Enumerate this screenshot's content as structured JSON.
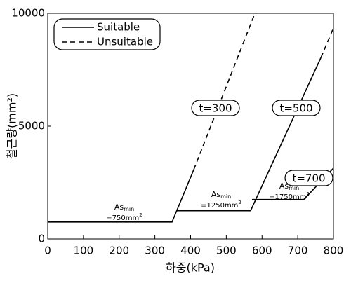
{
  "chart_data": {
    "type": "line",
    "xlabel": "하중(kPa)",
    "ylabel": "철근량(mm²)",
    "xlim": [
      0,
      800
    ],
    "ylim": [
      0,
      10000
    ],
    "xticks": [
      0,
      100,
      200,
      300,
      400,
      500,
      600,
      700,
      800
    ],
    "yticks": [
      0,
      5000,
      10000
    ],
    "legend": {
      "position": "upper left",
      "entries": [
        {
          "label": "Suitable",
          "dash": "solid"
        },
        {
          "label": "Unsuitable",
          "dash": "dashed"
        }
      ]
    },
    "color": "#000000",
    "series": [
      {
        "name": "t=300",
        "suitable": {
          "x": [
            0,
            348,
            409
          ],
          "values": [
            750,
            750,
            3075
          ]
        },
        "unsuitable": {
          "x": [
            409,
            580
          ],
          "values": [
            3075,
            10000
          ]
        }
      },
      {
        "name": "t=500",
        "suitable": {
          "x": [
            360,
            568,
            765
          ],
          "values": [
            1250,
            1250,
            8040
          ]
        },
        "unsuitable": {
          "x": [
            765,
            800
          ],
          "values": [
            8040,
            9350
          ]
        }
      },
      {
        "name": "t=700",
        "suitable": {
          "x": [
            572,
            717,
            800
          ],
          "values": [
            1750,
            1750,
            3140
          ]
        }
      }
    ],
    "annotations": [
      {
        "label": "As",
        "subscript": "min",
        "text": "=750mm",
        "superscript": "2"
      },
      {
        "label": "As",
        "subscript": "min",
        "text": "=1250mm",
        "superscript": "2"
      },
      {
        "label": "As",
        "subscript": "min",
        "text": "=1750mm",
        "superscript": "2"
      }
    ]
  }
}
